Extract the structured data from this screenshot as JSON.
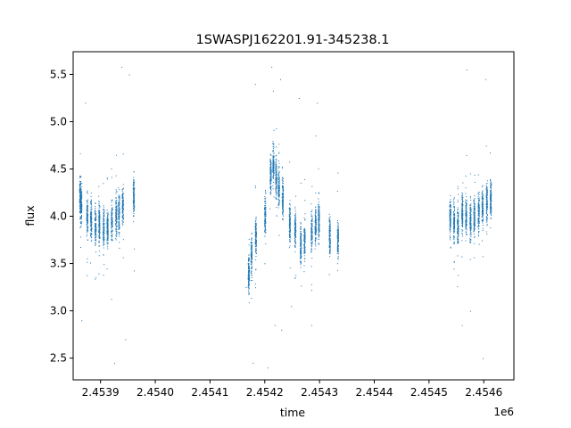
{
  "chart_data": {
    "type": "scatter",
    "title": "1SWASPJ162201.91-345238.1",
    "xlabel": "time",
    "ylabel": "flux",
    "x_offset_label": "1e6",
    "xlim": [
      2453850,
      2454655
    ],
    "ylim": [
      2.27,
      5.74
    ],
    "x_ticks": [
      2453900,
      2454000,
      2454100,
      2454200,
      2454300,
      2454400,
      2454500,
      2454600
    ],
    "x_tick_labels": [
      "2.4539",
      "2.4540",
      "2.4541",
      "2.4542",
      "2.4543",
      "2.4544",
      "2.4545",
      "2.4546"
    ],
    "y_ticks": [
      2.5,
      3.0,
      3.5,
      4.0,
      4.5,
      5.0,
      5.5
    ],
    "y_tick_labels": [
      "2.5",
      "3.0",
      "3.5",
      "4.0",
      "4.5",
      "5.0",
      "5.5"
    ],
    "grid": false,
    "marker_color": "#1f77b4",
    "series": [
      {
        "name": "",
        "observing_nights": [
          {
            "x": 2453862,
            "y": 4.2
          },
          {
            "x": 2453864,
            "y": 4.15
          },
          {
            "x": 2453875,
            "y": 4.0
          },
          {
            "x": 2453882,
            "y": 3.95
          },
          {
            "x": 2453890,
            "y": 3.9
          },
          {
            "x": 2453897,
            "y": 3.92
          },
          {
            "x": 2453905,
            "y": 3.9
          },
          {
            "x": 2453912,
            "y": 3.88
          },
          {
            "x": 2453920,
            "y": 3.95
          },
          {
            "x": 2453928,
            "y": 4.0
          },
          {
            "x": 2453933,
            "y": 4.05
          },
          {
            "x": 2453940,
            "y": 4.1
          },
          {
            "x": 2453960,
            "y": 4.2
          },
          {
            "x": 2454170,
            "y": 3.4
          },
          {
            "x": 2454175,
            "y": 3.6
          },
          {
            "x": 2454183,
            "y": 3.8
          },
          {
            "x": 2454200,
            "y": 4.0
          },
          {
            "x": 2454210,
            "y": 4.45
          },
          {
            "x": 2454215,
            "y": 4.55
          },
          {
            "x": 2454220,
            "y": 4.4
          },
          {
            "x": 2454225,
            "y": 4.3
          },
          {
            "x": 2454232,
            "y": 4.2
          },
          {
            "x": 2454245,
            "y": 3.95
          },
          {
            "x": 2454255,
            "y": 3.85
          },
          {
            "x": 2454265,
            "y": 3.7
          },
          {
            "x": 2454272,
            "y": 3.75
          },
          {
            "x": 2454285,
            "y": 3.85
          },
          {
            "x": 2454292,
            "y": 3.9
          },
          {
            "x": 2454298,
            "y": 3.95
          },
          {
            "x": 2454318,
            "y": 3.8
          },
          {
            "x": 2454333,
            "y": 3.75
          },
          {
            "x": 2454538,
            "y": 4.0
          },
          {
            "x": 2454545,
            "y": 3.95
          },
          {
            "x": 2454552,
            "y": 3.9
          },
          {
            "x": 2454560,
            "y": 4.05
          },
          {
            "x": 2454567,
            "y": 4.0
          },
          {
            "x": 2454575,
            "y": 3.95
          },
          {
            "x": 2454582,
            "y": 4.0
          },
          {
            "x": 2454590,
            "y": 4.05
          },
          {
            "x": 2454597,
            "y": 4.1
          },
          {
            "x": 2454605,
            "y": 4.15
          },
          {
            "x": 2454612,
            "y": 4.2
          }
        ],
        "outliers": [
          {
            "x": 2453865,
            "y": 2.9
          },
          {
            "x": 2453872,
            "y": 5.2
          },
          {
            "x": 2453925,
            "y": 2.45
          },
          {
            "x": 2453938,
            "y": 5.58
          },
          {
            "x": 2453945,
            "y": 2.7
          },
          {
            "x": 2453952,
            "y": 5.5
          },
          {
            "x": 2454165,
            "y": 3.25
          },
          {
            "x": 2454178,
            "y": 2.45
          },
          {
            "x": 2454182,
            "y": 5.4
          },
          {
            "x": 2454205,
            "y": 2.4
          },
          {
            "x": 2454212,
            "y": 5.58
          },
          {
            "x": 2454218,
            "y": 2.85
          },
          {
            "x": 2454228,
            "y": 5.45
          },
          {
            "x": 2454230,
            "y": 2.8
          },
          {
            "x": 2454248,
            "y": 3.05
          },
          {
            "x": 2454262,
            "y": 5.25
          },
          {
            "x": 2454285,
            "y": 2.85
          },
          {
            "x": 2454295,
            "y": 5.2
          },
          {
            "x": 2454560,
            "y": 2.85
          },
          {
            "x": 2454568,
            "y": 5.55
          },
          {
            "x": 2454575,
            "y": 3.0
          },
          {
            "x": 2454598,
            "y": 2.5
          },
          {
            "x": 2454603,
            "y": 5.45
          }
        ]
      }
    ]
  }
}
